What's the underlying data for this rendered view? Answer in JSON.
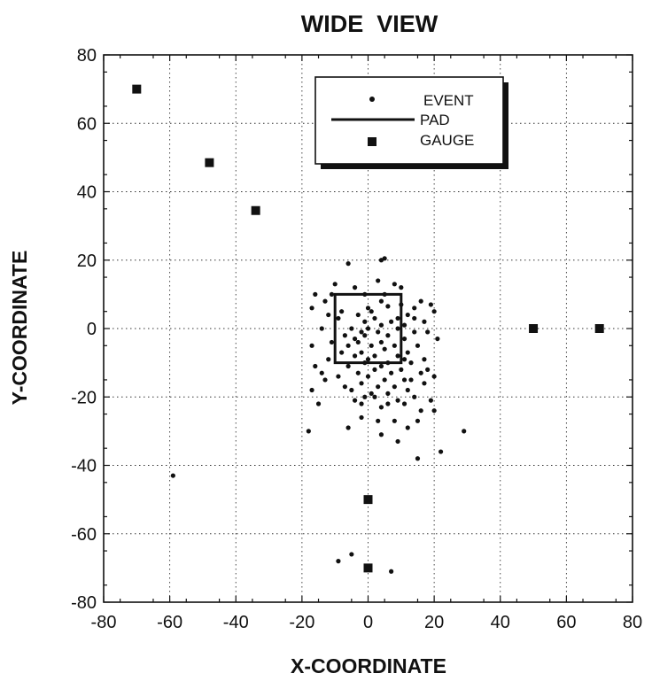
{
  "chart_data": {
    "type": "scatter",
    "title": "WIDE  VIEW",
    "xlabel": "X-COORDINATE",
    "ylabel": "Y-COORDINATE",
    "xlim": [
      -80,
      80
    ],
    "ylim": [
      -80,
      80
    ],
    "xticks": [
      "-80",
      "-60",
      "-40",
      "-20",
      "0",
      "20",
      "40",
      "60",
      "80"
    ],
    "yticks": [
      "80",
      "60",
      "40",
      "20",
      "0",
      "-20",
      "-40",
      "-60",
      "-80"
    ],
    "grid": true,
    "legend_position": "top-center",
    "legend": {
      "event": "EVENT",
      "pad": "PAD",
      "gauge": "GAUGE"
    },
    "pad": {
      "x": [
        -10,
        10
      ],
      "y": [
        -10,
        10
      ]
    },
    "gauges": [
      [
        -70,
        70
      ],
      [
        -48,
        48.5
      ],
      [
        -34,
        34.5
      ],
      [
        50,
        0
      ],
      [
        70,
        0
      ],
      [
        0,
        -50
      ],
      [
        0,
        -70
      ]
    ],
    "events": [
      [
        5,
        20.5
      ],
      [
        4,
        20
      ],
      [
        -6,
        19
      ],
      [
        8,
        13
      ],
      [
        -4,
        12
      ],
      [
        -11,
        10
      ],
      [
        -16,
        10
      ],
      [
        -1,
        10
      ],
      [
        4,
        8
      ],
      [
        16,
        8
      ],
      [
        10,
        7
      ],
      [
        19,
        7
      ],
      [
        6,
        6.5
      ],
      [
        20,
        5
      ],
      [
        -17,
        6
      ],
      [
        -8,
        5
      ],
      [
        1,
        5
      ],
      [
        12,
        4
      ],
      [
        -12,
        4
      ],
      [
        -3,
        4
      ],
      [
        2,
        3
      ],
      [
        14,
        3
      ],
      [
        -9,
        3
      ],
      [
        7,
        2
      ],
      [
        -1,
        2
      ],
      [
        17,
        2
      ],
      [
        11,
        1
      ],
      [
        4,
        1
      ],
      [
        -5,
        0
      ],
      [
        -14,
        0
      ],
      [
        9,
        0
      ],
      [
        0,
        0
      ],
      [
        -2,
        -1
      ],
      [
        3,
        -1
      ],
      [
        14,
        -1
      ],
      [
        6,
        -2
      ],
      [
        -7,
        -2
      ],
      [
        -1,
        -2
      ],
      [
        11,
        -3
      ],
      [
        21,
        -3
      ],
      [
        -3,
        -4
      ],
      [
        4,
        -4
      ],
      [
        -11,
        -4
      ],
      [
        8,
        -5
      ],
      [
        1,
        -5
      ],
      [
        -6,
        -5
      ],
      [
        15,
        -5
      ],
      [
        -17,
        -5
      ],
      [
        5,
        -6
      ],
      [
        -2,
        -7
      ],
      [
        12,
        -7
      ],
      [
        -8,
        -7
      ],
      [
        2,
        -8
      ],
      [
        -4,
        -8
      ],
      [
        9,
        -8
      ],
      [
        0,
        -9
      ],
      [
        17,
        -9
      ],
      [
        -12,
        -9
      ],
      [
        6,
        -10
      ],
      [
        -1,
        -10
      ],
      [
        13,
        -10
      ],
      [
        -6,
        -11
      ],
      [
        4,
        -11
      ],
      [
        -16,
        -11
      ],
      [
        10,
        -12
      ],
      [
        2,
        -12
      ],
      [
        -3,
        -13
      ],
      [
        16,
        -13
      ],
      [
        7,
        -13
      ],
      [
        -9,
        -14
      ],
      [
        0,
        -14
      ],
      [
        20,
        -14
      ],
      [
        11,
        -15
      ],
      [
        5,
        -15
      ],
      [
        -13,
        -15
      ],
      [
        -2,
        -16
      ],
      [
        17,
        -16
      ],
      [
        3,
        -17
      ],
      [
        8,
        -17
      ],
      [
        -5,
        -18
      ],
      [
        12,
        -18
      ],
      [
        -17,
        -18
      ],
      [
        1,
        -19
      ],
      [
        6,
        -19
      ],
      [
        -1,
        -20
      ],
      [
        14,
        -20
      ],
      [
        2,
        -20
      ],
      [
        9,
        -21
      ],
      [
        -4,
        -21
      ],
      [
        19,
        -21
      ],
      [
        6,
        -22
      ],
      [
        -15,
        -22
      ],
      [
        11,
        -22
      ],
      [
        4,
        -23
      ],
      [
        16,
        -24
      ],
      [
        20,
        -24
      ],
      [
        -2,
        -26
      ],
      [
        8,
        -27
      ],
      [
        15,
        -27
      ],
      [
        -6,
        -29
      ],
      [
        -18,
        -30
      ],
      [
        29,
        -30
      ],
      [
        4,
        -31
      ],
      [
        9,
        -33
      ],
      [
        22,
        -36
      ],
      [
        15,
        -38
      ],
      [
        -59,
        -43
      ],
      [
        -5,
        -66
      ],
      [
        -9,
        -68
      ],
      [
        7,
        -71
      ],
      [
        10,
        12
      ],
      [
        -13,
        8
      ],
      [
        18,
        -1
      ],
      [
        -10,
        13
      ],
      [
        3,
        14
      ],
      [
        12,
        -29
      ],
      [
        -7,
        -17
      ],
      [
        14,
        6
      ],
      [
        0,
        6
      ],
      [
        9,
        3
      ],
      [
        -4,
        -3
      ],
      [
        3,
        -27
      ],
      [
        -14,
        -13
      ],
      [
        18,
        -12
      ],
      [
        11,
        -9
      ],
      [
        5,
        10
      ],
      [
        -2,
        -22
      ],
      [
        13,
        -15
      ]
    ]
  }
}
